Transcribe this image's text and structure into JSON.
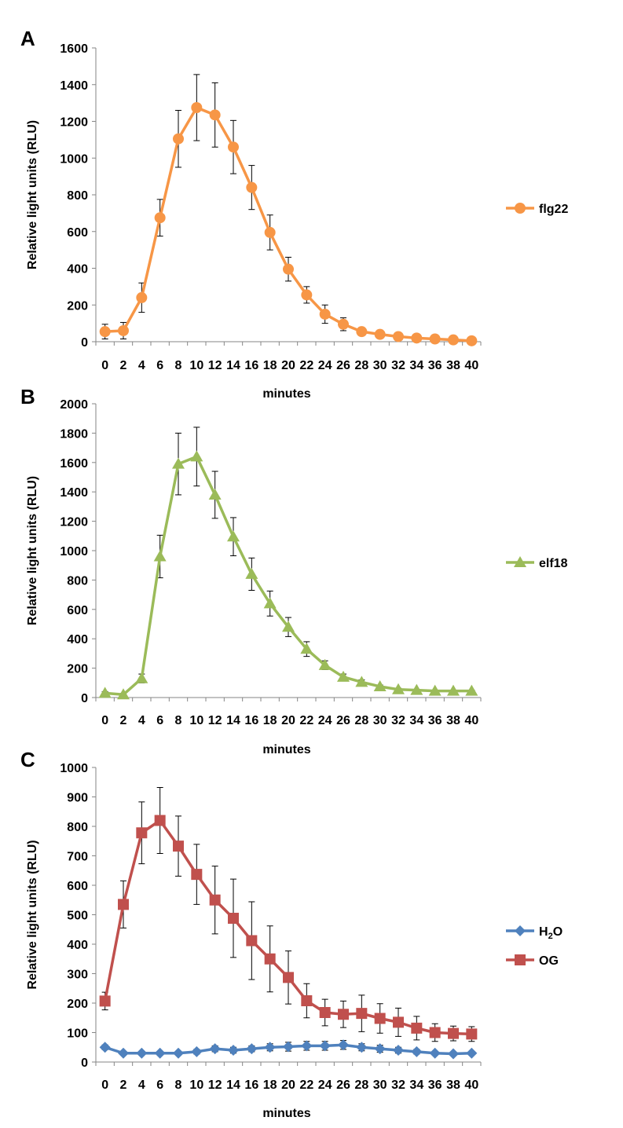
{
  "chart_data": [
    {
      "type": "line",
      "panel_label": "A",
      "xlabel": "minutes",
      "ylabel": "Relative light units (RLU)",
      "ylim": [
        0,
        1600
      ],
      "yticks": [
        "0",
        "200",
        "400",
        "600",
        "800",
        "1000",
        "1200",
        "1400",
        "1600"
      ],
      "categories": [
        "0",
        "2",
        "4",
        "6",
        "8",
        "10",
        "12",
        "14",
        "16",
        "18",
        "20",
        "22",
        "24",
        "26",
        "28",
        "30",
        "32",
        "34",
        "36",
        "38",
        "40"
      ],
      "legend_position": "right",
      "series": [
        {
          "name": "flg22",
          "name_sub": "",
          "name_suffix": "",
          "color": "#F79646",
          "marker": "circle",
          "values": [
            55,
            60,
            240,
            675,
            1105,
            1275,
            1235,
            1060,
            840,
            595,
            395,
            255,
            150,
            95,
            55,
            40,
            28,
            20,
            15,
            10,
            5
          ],
          "errors": [
            40,
            45,
            80,
            100,
            155,
            180,
            175,
            145,
            120,
            95,
            65,
            45,
            50,
            35,
            12,
            10,
            8,
            6,
            5,
            5,
            3
          ]
        }
      ]
    },
    {
      "type": "line",
      "panel_label": "B",
      "xlabel": "minutes",
      "ylabel": "Relative light units (RLU)",
      "ylim": [
        0,
        2000
      ],
      "yticks": [
        "0",
        "200",
        "400",
        "600",
        "800",
        "1000",
        "1200",
        "1400",
        "1600",
        "1800",
        "2000"
      ],
      "categories": [
        "0",
        "2",
        "4",
        "6",
        "8",
        "10",
        "12",
        "14",
        "16",
        "18",
        "20",
        "22",
        "24",
        "26",
        "28",
        "30",
        "32",
        "34",
        "36",
        "38",
        "40"
      ],
      "legend_position": "right",
      "series": [
        {
          "name": "elf18",
          "name_sub": "",
          "name_suffix": "",
          "color": "#9BBB59",
          "marker": "triangle",
          "values": [
            30,
            20,
            130,
            960,
            1590,
            1640,
            1380,
            1095,
            840,
            640,
            480,
            330,
            220,
            140,
            105,
            75,
            55,
            50,
            45,
            45,
            45
          ],
          "errors": [
            10,
            8,
            30,
            145,
            210,
            200,
            160,
            130,
            110,
            85,
            65,
            50,
            30,
            20,
            15,
            10,
            8,
            6,
            5,
            5,
            5
          ]
        }
      ]
    },
    {
      "type": "line",
      "panel_label": "C",
      "xlabel": "minutes",
      "ylabel": "Relative light units (RLU)",
      "ylim": [
        0,
        1000
      ],
      "yticks": [
        "0",
        "100",
        "200",
        "300",
        "400",
        "500",
        "600",
        "700",
        "800",
        "900",
        "1000"
      ],
      "categories": [
        "0",
        "2",
        "4",
        "6",
        "8",
        "10",
        "12",
        "14",
        "16",
        "18",
        "20",
        "22",
        "24",
        "26",
        "28",
        "30",
        "32",
        "34",
        "36",
        "38",
        "40"
      ],
      "legend_position": "right",
      "series": [
        {
          "name": "H",
          "name_sub": "2",
          "name_suffix": "O",
          "color": "#4F81BD",
          "marker": "diamond",
          "values": [
            50,
            30,
            30,
            30,
            30,
            35,
            45,
            40,
            45,
            50,
            52,
            55,
            55,
            58,
            50,
            45,
            40,
            35,
            30,
            28,
            30
          ],
          "errors": [
            8,
            6,
            6,
            5,
            5,
            8,
            10,
            10,
            10,
            12,
            15,
            15,
            15,
            15,
            12,
            12,
            10,
            8,
            6,
            5,
            5
          ]
        },
        {
          "name": "OG",
          "name_sub": "",
          "name_suffix": "",
          "color": "#C0504D",
          "marker": "square",
          "values": [
            207,
            535,
            778,
            820,
            733,
            637,
            550,
            488,
            412,
            350,
            287,
            208,
            168,
            162,
            165,
            148,
            135,
            115,
            100,
            97,
            95
          ],
          "errors": [
            30,
            80,
            105,
            112,
            102,
            102,
            115,
            133,
            132,
            112,
            90,
            58,
            45,
            45,
            62,
            50,
            48,
            40,
            30,
            25,
            25
          ]
        }
      ]
    }
  ]
}
